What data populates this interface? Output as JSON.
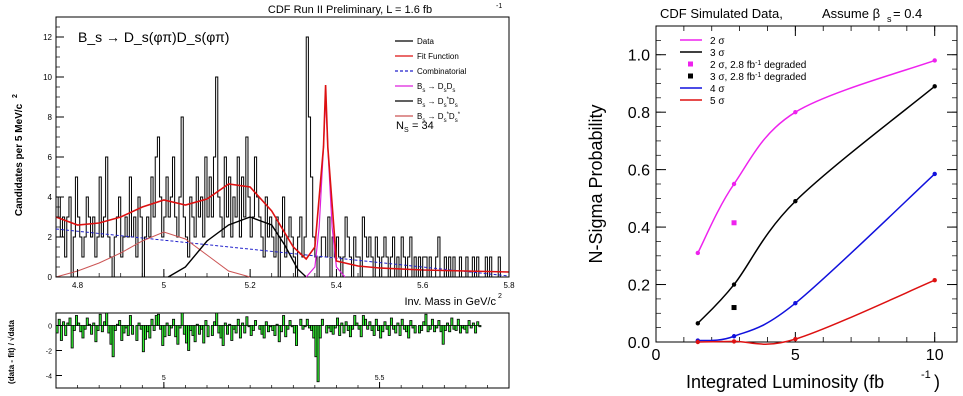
{
  "chart_data": [
    {
      "type": "histogram",
      "panel": "left-top",
      "title": "CDF Run II Preliminary, L = 1.6 fb",
      "title_superscript": "-1",
      "decay_label": "B_s → D_s(φπ)D_s(φπ)",
      "ylabel": "Candidates per 5 MeV/c",
      "ylabel_superscript": "2",
      "xlabel": "Inv. Mass in GeV/c",
      "xlabel_superscript": "2",
      "xlim": [
        4.75,
        5.8
      ],
      "ylim": [
        0,
        13
      ],
      "x_ticks": [
        "4.8",
        "5",
        "5.2",
        "5.4",
        "5.6",
        "5.8"
      ],
      "y_ticks": [
        "0",
        "2",
        "4",
        "6",
        "8",
        "10",
        "12"
      ],
      "ns_label": "N",
      "ns_sub": "S",
      "ns_value": "= 34",
      "legend": [
        {
          "name": "Data",
          "sub": "",
          "color": "#000000",
          "dash": false
        },
        {
          "name": "Fit Function",
          "sub": "",
          "color": "#dd1111",
          "dash": false
        },
        {
          "name": "Combinatorial",
          "sub": "",
          "color": "#2222cc",
          "dash": true
        },
        {
          "name": "B",
          "sub": "s",
          "rest": " → D",
          "sub2": "s",
          "rest2": "D",
          "sub3": "s",
          "color": "#dd22dd",
          "dash": false
        },
        {
          "name": "B",
          "sub": "s",
          "rest": " → D",
          "sub2": "s",
          "sup2": "*",
          "rest2": "D",
          "sub3": "s",
          "color": "#000000",
          "dash": false
        },
        {
          "name": "B",
          "sub": "s",
          "rest": " → D",
          "sub2": "s",
          "sup2": "*",
          "rest2": "D",
          "sub3": "s",
          "sup3": "*",
          "color": "#cc5555",
          "dash": false
        }
      ],
      "bin_width": 0.005,
      "data_counts": [
        3,
        4,
        2,
        3,
        1,
        3,
        4,
        0,
        2,
        5,
        3,
        2,
        1,
        2,
        4,
        3,
        2,
        3,
        1,
        2,
        5,
        2,
        3,
        6,
        2,
        1,
        0,
        2,
        3,
        4,
        1,
        2,
        3,
        2,
        5,
        2,
        3,
        1,
        4,
        3,
        0,
        2,
        3,
        2,
        5,
        3,
        6,
        7,
        4,
        2,
        3,
        5,
        3,
        4,
        6,
        3,
        2,
        4,
        8,
        3,
        2,
        1,
        4,
        3,
        2,
        5,
        3,
        4,
        2,
        6,
        3,
        5,
        3,
        6,
        10,
        4,
        3,
        2,
        6,
        3,
        5,
        2,
        4,
        3,
        6,
        2,
        5,
        3,
        7,
        4,
        2,
        3,
        6,
        4,
        3,
        2,
        1,
        4,
        2,
        3,
        2,
        1,
        3,
        0,
        2,
        4,
        1,
        2,
        3,
        2,
        1,
        0,
        2,
        3,
        1,
        2,
        12,
        8,
        5,
        2,
        1,
        0,
        1,
        2,
        2,
        1,
        3,
        0,
        2,
        1,
        2,
        1,
        0,
        1,
        3,
        2,
        1,
        0,
        2,
        1,
        1,
        0,
        3,
        2,
        1,
        2,
        1,
        0,
        2,
        1,
        0,
        1,
        2,
        1,
        0,
        1,
        2,
        0,
        1,
        0,
        2,
        1,
        0,
        1,
        2,
        0,
        1,
        0,
        1,
        0,
        1,
        1,
        0,
        1,
        0,
        0,
        1,
        2,
        0,
        0,
        1,
        0,
        1,
        0,
        1,
        0,
        0,
        1,
        0,
        0,
        1,
        0,
        0,
        1,
        0,
        1,
        0,
        0,
        0,
        1,
        0,
        1,
        0,
        0,
        0,
        1,
        0
      ],
      "curves": {
        "comb_x": [
          4.75,
          5.8
        ],
        "comb_y": [
          2.4,
          0.05
        ],
        "fit_x": [
          4.75,
          4.8,
          4.85,
          4.9,
          4.95,
          5.0,
          5.05,
          5.1,
          5.15,
          5.2,
          5.25,
          5.3,
          5.33,
          5.35,
          5.37,
          5.375,
          5.38,
          5.4,
          5.45,
          5.5,
          5.6,
          5.7,
          5.8
        ],
        "fit_y": [
          3.0,
          2.6,
          2.7,
          3.0,
          3.5,
          3.85,
          3.6,
          3.9,
          4.65,
          4.5,
          3.3,
          1.5,
          0.9,
          1.5,
          6.5,
          9.6,
          6.5,
          0.8,
          0.55,
          0.45,
          0.35,
          0.3,
          0.25
        ],
        "bsdsds_x": [
          5.33,
          5.35,
          5.36,
          5.37,
          5.375,
          5.38,
          5.39,
          5.4,
          5.42
        ],
        "bsdsds_y": [
          0,
          0.5,
          2.5,
          6.5,
          9.1,
          6.5,
          2.5,
          0.5,
          0
        ],
        "bsdsds_star_x": [
          5.01,
          5.05,
          5.1,
          5.15,
          5.2,
          5.25,
          5.28,
          5.31,
          5.33
        ],
        "bsdsds_star_y": [
          0,
          0.5,
          1.8,
          2.6,
          3.0,
          2.6,
          1.6,
          0.4,
          0
        ],
        "bsds2_x": [
          4.75,
          4.8,
          4.85,
          4.9,
          4.95,
          5.0,
          5.05,
          5.1,
          5.15,
          5.2
        ],
        "bsds2_y": [
          0,
          0.3,
          0.7,
          1.2,
          1.8,
          2.25,
          1.9,
          1.1,
          0.3,
          0
        ]
      }
    },
    {
      "type": "residual-bar",
      "panel": "left-bottom",
      "ylabel": "(data - fit) / √data",
      "xlim": [
        4.75,
        5.8
      ],
      "ylim": [
        -5,
        1
      ],
      "x_ticks": [
        "5",
        "5.5"
      ],
      "y_ticks": [
        "-4",
        "-2",
        "0"
      ],
      "color": "#33ee33",
      "values": [
        -0.6,
        0.5,
        -1.2,
        0.3,
        -0.8,
        0.2,
        0.6,
        -1.8,
        -0.4,
        0.8,
        0.2,
        -0.5,
        -1.0,
        -0.3,
        0.6,
        0.1,
        -0.7,
        0.2,
        -1.3,
        -0.4,
        0.9,
        -0.5,
        0.3,
        1.0,
        -0.6,
        -1.5,
        -2.5,
        -0.4,
        0.1,
        0.4,
        -1.2,
        -0.6,
        -0.2,
        -0.8,
        0.8,
        -0.7,
        0.0,
        -1.2,
        0.2,
        -0.3,
        -2.1,
        -1.1,
        -0.5,
        -1.0,
        0.5,
        -0.4,
        0.8,
        0.9,
        -0.3,
        -1.6,
        -0.9,
        0.2,
        -0.8,
        -0.2,
        0.5,
        -0.9,
        -1.5,
        -0.2,
        1.0,
        -0.7,
        -1.4,
        -2.0,
        -0.4,
        -0.8,
        -1.3,
        0.1,
        -0.7,
        -0.3,
        -1.4,
        0.4,
        -0.9,
        0.0,
        -0.8,
        0.3,
        1.0,
        -0.6,
        -1.0,
        -1.6,
        0.2,
        -0.7,
        0.1,
        -1.2,
        -0.3,
        -0.6,
        0.5,
        -1.0,
        0.2,
        -0.6,
        0.7,
        -0.1,
        -0.8,
        -0.4,
        0.4,
        0.0,
        -0.3,
        -0.7,
        -1.0,
        0.3,
        -0.5,
        -0.1,
        -0.4,
        -0.8,
        0.1,
        -1.3,
        -0.5,
        0.8,
        -0.9,
        -0.3,
        0.4,
        -0.1,
        -0.6,
        -1.6,
        0.0,
        0.5,
        -0.3,
        -0.1,
        0.5,
        -0.2,
        -0.4,
        -1.0,
        -2.5,
        -4.5,
        -1.0,
        0.5,
        0.0,
        -0.6,
        -0.2,
        -0.5,
        -0.7,
        -0.2,
        0.6,
        -0.8,
        0.2,
        -0.6,
        0.3,
        -0.4,
        -0.9,
        -0.3,
        0.8,
        0.2,
        -0.3,
        -0.9,
        0.8,
        0.5,
        -0.3,
        0.3,
        -0.4,
        -0.8,
        0.5,
        -0.4,
        -1.0,
        -0.5,
        0.3,
        -0.3,
        -0.8,
        0.6,
        -0.3,
        -0.6,
        0.2,
        -0.8,
        0.5,
        -0.3,
        -0.5,
        -1.0,
        0.4,
        -0.2,
        -0.6,
        0.0,
        -0.6,
        -0.4,
        0.3,
        0.9,
        -0.5,
        -0.3,
        0.5,
        -0.5,
        -0.2,
        0.4,
        -0.5,
        -1.5,
        -0.4,
        0.2,
        -0.5,
        0.6,
        -0.3,
        -0.4,
        0.5,
        -0.6,
        -0.2,
        -0.3,
        -0.6,
        0.4,
        -0.2,
        0.2,
        -0.6,
        0.3,
        -0.1
      ]
    },
    {
      "type": "line",
      "panel": "right",
      "title": "CDF Simulated Data,",
      "title2": "Assume β",
      "title2_sub": "s",
      "title2_value": " = 0.4",
      "xlabel": "Integrated Luminosity (fb",
      "xlabel_superscript": "-1",
      "xlabel_close": ")",
      "ylabel": "N-Sigma Probability",
      "xlim": [
        0,
        10.8
      ],
      "ylim": [
        0,
        1.1
      ],
      "x_ticks": [
        "0",
        "5",
        "10"
      ],
      "y_ticks": [
        "0.0",
        "0.2",
        "0.4",
        "0.6",
        "0.8",
        "1.0"
      ],
      "legend": [
        {
          "name": "2 σ",
          "marker": "line",
          "color": "#ee22ee"
        },
        {
          "name": "3 σ",
          "marker": "line",
          "color": "#000000"
        },
        {
          "name": "2 σ, 2.8 fb",
          "sup": "-1",
          "tail": " degraded",
          "marker": "square",
          "color": "#ee22ee"
        },
        {
          "name": "3 σ, 2.8 fb",
          "sup": "-1",
          "tail": " degraded",
          "marker": "square",
          "color": "#000000"
        },
        {
          "name": "4 σ",
          "marker": "line",
          "color": "#1111dd"
        },
        {
          "name": "5 σ",
          "marker": "line",
          "color": "#dd1111"
        }
      ],
      "series": [
        {
          "name": "2 σ",
          "color": "#ee22ee",
          "x": [
            1.5,
            2.8,
            5,
            10
          ],
          "y": [
            0.31,
            0.55,
            0.8,
            0.98
          ]
        },
        {
          "name": "3 σ",
          "color": "#000000",
          "x": [
            1.5,
            2.8,
            5,
            10
          ],
          "y": [
            0.065,
            0.2,
            0.49,
            0.89
          ]
        },
        {
          "name": "4 σ",
          "color": "#1111dd",
          "x": [
            1.5,
            2.8,
            5,
            10
          ],
          "y": [
            0.005,
            0.02,
            0.135,
            0.585
          ]
        },
        {
          "name": "5 σ",
          "color": "#dd1111",
          "x": [
            1.5,
            2.8,
            5,
            10
          ],
          "y": [
            0.0,
            0.002,
            0.01,
            0.215
          ]
        }
      ],
      "degraded_points": [
        {
          "name": "2 σ, 2.8 fb-1 degraded",
          "color": "#ee22ee",
          "x": 2.8,
          "y": 0.415
        },
        {
          "name": "3 σ, 2.8 fb-1 degraded",
          "color": "#000000",
          "x": 2.8,
          "y": 0.12
        }
      ]
    }
  ]
}
